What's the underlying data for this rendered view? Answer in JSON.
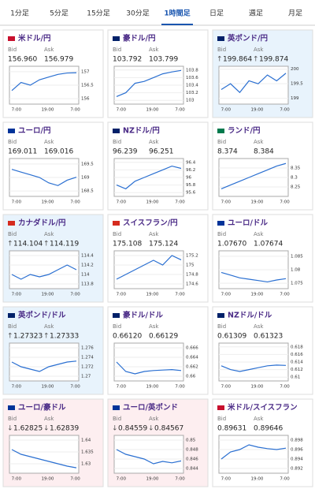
{
  "tabs": [
    "1分足",
    "5分足",
    "15分足",
    "30分足",
    "1時間足",
    "日足",
    "週足",
    "月足"
  ],
  "active_tab": 4,
  "x_ticks": [
    "7:00",
    "19:00",
    "7:00"
  ],
  "bid_label": "Bid",
  "ask_label": "Ask",
  "line_color": "#2a6fd1",
  "panels": [
    {
      "name": "米ドル/円",
      "bid": "156.960",
      "ask": "156.979",
      "bg": "#ffffff",
      "flag": "#c8102e",
      "ylim": [
        155.8,
        157.2
      ],
      "yticks": [
        157,
        {
          "value": 156.5,
          "label": "156.5"
        },
        156
      ],
      "line": [
        156.3,
        156.6,
        156.5,
        156.7,
        156.8,
        156.9,
        156.95,
        156.96
      ]
    },
    {
      "name": "豪ドル/円",
      "bid": "103.792",
      "ask": "103.799",
      "bg": "#ffffff",
      "flag": "#012169",
      "ylim": [
        102.9,
        103.9
      ],
      "yticks": [
        103.8,
        103.6,
        103.4,
        103.2,
        103
      ],
      "line": [
        103.1,
        103.2,
        103.45,
        103.5,
        103.6,
        103.7,
        103.75,
        103.79
      ]
    },
    {
      "name": "英ポンド/円",
      "trend": "↑",
      "bid": "199.864",
      "ask": "199.874",
      "bg": "#e8f3fc",
      "flag": "#012169",
      "ylim": [
        198.8,
        200.1
      ],
      "yticks": [
        200,
        199.5,
        199
      ],
      "line": [
        199.3,
        199.5,
        199.2,
        199.6,
        199.5,
        199.8,
        199.6,
        199.86
      ]
    },
    {
      "name": "ユーロ/円",
      "bid": "169.011",
      "ask": "169.016",
      "bg": "#ffffff",
      "flag": "#003399",
      "ylim": [
        168.3,
        169.7
      ],
      "yticks": [
        169.5,
        169,
        168.5
      ],
      "line": [
        169.3,
        169.2,
        169.1,
        169,
        168.8,
        168.7,
        168.9,
        169.01
      ]
    },
    {
      "name": "NZドル/円",
      "bid": "96.239",
      "ask": "96.251",
      "bg": "#ffffff",
      "flag": "#012169",
      "ylim": [
        95.5,
        96.5
      ],
      "yticks": [
        96.4,
        96.2,
        96,
        95.8,
        95.6
      ],
      "line": [
        95.8,
        95.7,
        95.9,
        96,
        96.1,
        96.2,
        96.3,
        96.24
      ]
    },
    {
      "name": "ランド/円",
      "bid": "8.374",
      "ask": "8.384",
      "bg": "#ffffff",
      "flag": "#007a4d",
      "ylim": [
        8.2,
        8.4
      ],
      "yticks": [
        {
          "value": 8.35,
          "label": "8.35"
        },
        8.3,
        {
          "value": 8.25,
          "label": "8.25"
        }
      ],
      "line": [
        8.24,
        8.26,
        8.28,
        8.3,
        8.32,
        8.34,
        8.36,
        8.374
      ]
    },
    {
      "name": "カナダドル/円",
      "trend": "↑",
      "bid": "114.104",
      "ask": "114.119",
      "bg": "#e8f3fc",
      "flag": "#d52b1e",
      "ylim": [
        113.7,
        114.5
      ],
      "yticks": [
        114.4,
        114.2,
        114,
        113.8
      ],
      "line": [
        114,
        113.9,
        114,
        113.95,
        114,
        114.1,
        114.2,
        114.1
      ]
    },
    {
      "name": "スイスフラン/円",
      "bid": "175.108",
      "ask": "175.124",
      "bg": "#ffffff",
      "flag": "#d52b1e",
      "ylim": [
        174.5,
        175.3
      ],
      "yticks": [
        175.2,
        175,
        174.8,
        174.6
      ],
      "line": [
        174.7,
        174.8,
        174.9,
        175,
        175.1,
        175,
        175.2,
        175.11
      ]
    },
    {
      "name": "ユーロ/ドル",
      "bid": "1.07670",
      "ask": "1.07674",
      "bg": "#ffffff",
      "flag": "#003399",
      "ylim": [
        1.073,
        1.087
      ],
      "yticks": [
        1.085,
        1.08,
        1.075
      ],
      "line": [
        1.079,
        1.078,
        1.077,
        1.0765,
        1.076,
        1.0755,
        1.0762,
        1.0767
      ]
    },
    {
      "name": "英ポンド/ドル",
      "trend": "↑",
      "bid": "1.27323",
      "ask": "1.27333",
      "bg": "#e8f3fc",
      "flag": "#012169",
      "ylim": [
        1.269,
        1.277
      ],
      "yticks": [
        1.276,
        1.274,
        1.272,
        1.27
      ],
      "line": [
        1.273,
        1.272,
        1.2715,
        1.271,
        1.272,
        1.2725,
        1.273,
        1.2732
      ]
    },
    {
      "name": "豪ドル/ドル",
      "bid": "0.66120",
      "ask": "0.66129",
      "bg": "#ffffff",
      "flag": "#012169",
      "ylim": [
        0.659,
        0.667
      ],
      "yticks": [
        0.666,
        0.664,
        0.662,
        0.66
      ],
      "line": [
        0.663,
        0.661,
        0.6605,
        0.661,
        0.6612,
        0.6613,
        0.6614,
        0.6612
      ]
    },
    {
      "name": "NZドル/ドル",
      "bid": "0.61309",
      "ask": "0.61323",
      "bg": "#ffffff",
      "flag": "#012169",
      "ylim": [
        0.609,
        0.619
      ],
      "yticks": [
        0.618,
        0.616,
        0.614,
        0.612,
        0.61
      ],
      "line": [
        0.613,
        0.612,
        0.6115,
        0.612,
        0.6125,
        0.613,
        0.6132,
        0.6131
      ]
    },
    {
      "name": "ユーロ/豪ドル",
      "trend": "↓",
      "bid": "1.62825",
      "ask": "1.62839",
      "bg": "#fdeef0",
      "flag": "#003399",
      "ylim": [
        1.626,
        1.642
      ],
      "yticks": [
        1.64,
        1.635,
        1.63
      ],
      "line": [
        1.636,
        1.634,
        1.633,
        1.632,
        1.631,
        1.63,
        1.629,
        1.6283
      ]
    },
    {
      "name": "ユーロ/英ポンド",
      "trend": "↓",
      "bid": "0.84559",
      "ask": "0.84567",
      "bg": "#fdeef0",
      "flag": "#003399",
      "ylim": [
        0.843,
        0.851
      ],
      "yticks": [
        0.85,
        0.848,
        0.846,
        0.844
      ],
      "line": [
        0.848,
        0.847,
        0.8465,
        0.846,
        0.845,
        0.8455,
        0.8452,
        0.8456
      ]
    },
    {
      "name": "米ドル/スイスフラン",
      "bid": "0.89631",
      "ask": "0.89646",
      "bg": "#ffffff",
      "flag": "#c8102e",
      "ylim": [
        0.891,
        0.899
      ],
      "yticks": [
        0.898,
        0.896,
        0.894,
        0.892
      ],
      "line": [
        0.894,
        0.8955,
        0.896,
        0.897,
        0.8965,
        0.8962,
        0.896,
        0.8963
      ]
    }
  ]
}
